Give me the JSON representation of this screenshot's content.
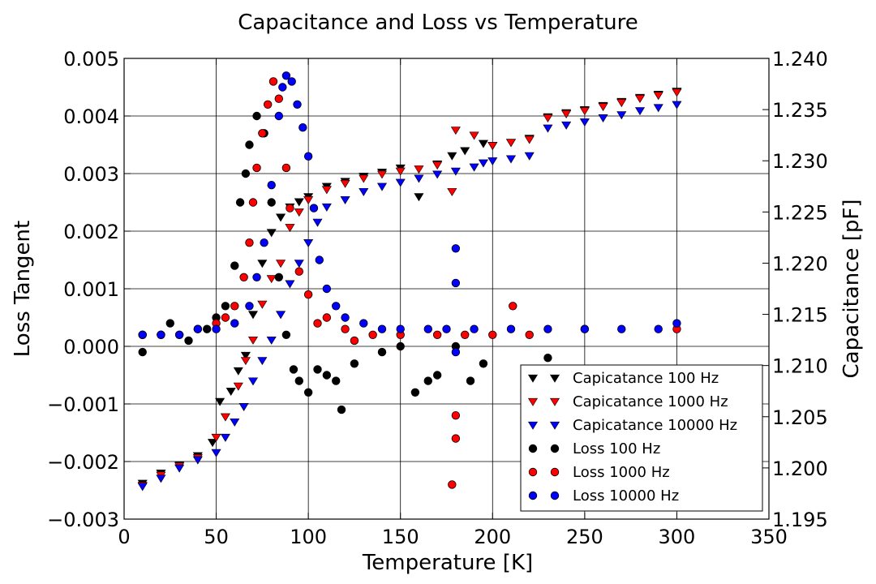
{
  "chart_data": {
    "type": "scatter",
    "title": "Capacitance and Loss vs Temperature",
    "xlabel": "Temperature [K]",
    "ylabel_left": "Loss Tangent",
    "ylabel_right": "Capacitance [pF]",
    "xlim": [
      0,
      350
    ],
    "ylim_left": [
      -0.003,
      0.005
    ],
    "ylim_right": [
      1.195,
      1.24
    ],
    "x_ticks": [
      "0",
      "50",
      "100",
      "150",
      "200",
      "250",
      "300",
      "350"
    ],
    "y_left_ticks": [
      "0.005",
      "0.004",
      "0.003",
      "0.002",
      "0.001",
      "0.000",
      "−0.001",
      "−0.002",
      "−0.003"
    ],
    "y_right_ticks": [
      "1.240",
      "1.235",
      "1.230",
      "1.225",
      "1.220",
      "1.215",
      "1.210",
      "1.205",
      "1.200",
      "1.195"
    ],
    "grid": true,
    "legend_position": "bottom-right",
    "series": [
      {
        "name": "Capicatance 100 Hz",
        "axis": "right",
        "marker": "triangle-down",
        "color": "#000000",
        "points": [
          [
            10,
            1.1985
          ],
          [
            20,
            1.1995
          ],
          [
            30,
            1.2003
          ],
          [
            40,
            1.2012
          ],
          [
            48,
            1.2025
          ],
          [
            52,
            1.2065
          ],
          [
            58,
            1.2075
          ],
          [
            62,
            1.2095
          ],
          [
            66,
            1.211
          ],
          [
            70,
            1.215
          ],
          [
            75,
            1.22
          ],
          [
            80,
            1.223
          ],
          [
            85,
            1.2245
          ],
          [
            90,
            1.2255
          ],
          [
            95,
            1.226
          ],
          [
            100,
            1.2265
          ],
          [
            110,
            1.2275
          ],
          [
            120,
            1.228
          ],
          [
            130,
            1.2285
          ],
          [
            140,
            1.2289
          ],
          [
            150,
            1.2293
          ],
          [
            160,
            1.2265
          ],
          [
            170,
            1.2297
          ],
          [
            178,
            1.2305
          ],
          [
            185,
            1.231
          ],
          [
            195,
            1.2317
          ],
          [
            200,
            1.2315
          ],
          [
            210,
            1.2318
          ],
          [
            220,
            1.2322
          ],
          [
            230,
            1.2343
          ],
          [
            240,
            1.2347
          ],
          [
            250,
            1.235
          ],
          [
            260,
            1.2354
          ],
          [
            270,
            1.2358
          ],
          [
            280,
            1.2362
          ],
          [
            290,
            1.2365
          ],
          [
            300,
            1.2368
          ]
        ]
      },
      {
        "name": "Capicatance 1000 Hz",
        "axis": "right",
        "marker": "triangle-down",
        "color": "#ff0000",
        "points": [
          [
            10,
            1.1983
          ],
          [
            20,
            1.1993
          ],
          [
            30,
            1.2002
          ],
          [
            40,
            1.201
          ],
          [
            50,
            1.203
          ],
          [
            55,
            1.205
          ],
          [
            62,
            1.208
          ],
          [
            66,
            1.2105
          ],
          [
            70,
            1.2125
          ],
          [
            75,
            1.216
          ],
          [
            80,
            1.2185
          ],
          [
            85,
            1.22
          ],
          [
            90,
            1.2235
          ],
          [
            95,
            1.225
          ],
          [
            100,
            1.2262
          ],
          [
            110,
            1.2272
          ],
          [
            120,
            1.2278
          ],
          [
            130,
            1.2283
          ],
          [
            140,
            1.2287
          ],
          [
            150,
            1.229
          ],
          [
            160,
            1.2292
          ],
          [
            170,
            1.2296
          ],
          [
            178,
            1.227
          ],
          [
            180,
            1.233
          ],
          [
            190,
            1.2325
          ],
          [
            200,
            1.2315
          ],
          [
            210,
            1.2318
          ],
          [
            220,
            1.2321
          ],
          [
            230,
            1.2342
          ],
          [
            240,
            1.2346
          ],
          [
            250,
            1.2349
          ],
          [
            260,
            1.2353
          ],
          [
            270,
            1.2357
          ],
          [
            280,
            1.2361
          ],
          [
            290,
            1.2364
          ],
          [
            300,
            1.2367
          ]
        ]
      },
      {
        "name": "Capicatance 10000 Hz",
        "axis": "right",
        "marker": "triangle-down",
        "color": "#0000ff",
        "points": [
          [
            10,
            1.1982
          ],
          [
            20,
            1.199
          ],
          [
            30,
            1.2
          ],
          [
            40,
            1.2008
          ],
          [
            50,
            1.2015
          ],
          [
            55,
            1.203
          ],
          [
            60,
            1.2045
          ],
          [
            65,
            1.206
          ],
          [
            70,
            1.2085
          ],
          [
            75,
            1.2105
          ],
          [
            80,
            1.2125
          ],
          [
            85,
            1.215
          ],
          [
            90,
            1.218
          ],
          [
            95,
            1.22
          ],
          [
            100,
            1.222
          ],
          [
            105,
            1.224
          ],
          [
            110,
            1.2255
          ],
          [
            120,
            1.2262
          ],
          [
            130,
            1.227
          ],
          [
            140,
            1.2275
          ],
          [
            150,
            1.2279
          ],
          [
            160,
            1.2283
          ],
          [
            170,
            1.2287
          ],
          [
            180,
            1.229
          ],
          [
            190,
            1.2294
          ],
          [
            195,
            1.2298
          ],
          [
            200,
            1.23
          ],
          [
            210,
            1.2302
          ],
          [
            220,
            1.2305
          ],
          [
            230,
            1.2332
          ],
          [
            240,
            1.2335
          ],
          [
            250,
            1.2338
          ],
          [
            260,
            1.2342
          ],
          [
            270,
            1.2345
          ],
          [
            280,
            1.2349
          ],
          [
            290,
            1.2352
          ],
          [
            300,
            1.2355
          ]
        ]
      },
      {
        "name": "Loss 100 Hz",
        "axis": "left",
        "marker": "circle",
        "color": "#000000",
        "points": [
          [
            10,
            0.0002
          ],
          [
            10,
            -0.0001
          ],
          [
            20,
            0.0002
          ],
          [
            25,
            0.0004
          ],
          [
            35,
            0.0001
          ],
          [
            45,
            0.0003
          ],
          [
            50,
            0.0005
          ],
          [
            55,
            0.0007
          ],
          [
            60,
            0.0014
          ],
          [
            63,
            0.0025
          ],
          [
            66,
            0.003
          ],
          [
            68,
            0.0035
          ],
          [
            72,
            0.004
          ],
          [
            76,
            0.0037
          ],
          [
            80,
            0.0025
          ],
          [
            84,
            0.0012
          ],
          [
            88,
            0.0002
          ],
          [
            92,
            -0.0004
          ],
          [
            95,
            -0.0006
          ],
          [
            100,
            -0.0008
          ],
          [
            105,
            -0.0004
          ],
          [
            110,
            -0.0005
          ],
          [
            115,
            -0.0006
          ],
          [
            118,
            -0.0011
          ],
          [
            125,
            -0.0003
          ],
          [
            140,
            -0.0001
          ],
          [
            150,
            0.0
          ],
          [
            158,
            -0.0008
          ],
          [
            165,
            -0.0006
          ],
          [
            170,
            -0.0005
          ],
          [
            180,
            0.0
          ],
          [
            188,
            -0.0006
          ],
          [
            195,
            -0.0003
          ],
          [
            230,
            -0.0002
          ],
          [
            233,
            -0.0004
          ]
        ]
      },
      {
        "name": "Loss 1000 Hz",
        "axis": "left",
        "marker": "circle",
        "color": "#ff0000",
        "points": [
          [
            10,
            0.0002
          ],
          [
            20,
            0.0002
          ],
          [
            30,
            0.0002
          ],
          [
            40,
            0.0003
          ],
          [
            50,
            0.0004
          ],
          [
            55,
            0.0005
          ],
          [
            60,
            0.0007
          ],
          [
            65,
            0.0012
          ],
          [
            68,
            0.0018
          ],
          [
            70,
            0.0025
          ],
          [
            72,
            0.0031
          ],
          [
            75,
            0.0037
          ],
          [
            78,
            0.0042
          ],
          [
            81,
            0.0046
          ],
          [
            84,
            0.0043
          ],
          [
            88,
            0.0031
          ],
          [
            90,
            0.0024
          ],
          [
            95,
            0.0013
          ],
          [
            100,
            0.0009
          ],
          [
            105,
            0.0004
          ],
          [
            110,
            0.0005
          ],
          [
            120,
            0.0003
          ],
          [
            125,
            0.0001
          ],
          [
            135,
            0.0002
          ],
          [
            150,
            0.0002
          ],
          [
            170,
            0.0002
          ],
          [
            178,
            -0.0024
          ],
          [
            180,
            -0.0016
          ],
          [
            180,
            -0.0012
          ],
          [
            185,
            0.0002
          ],
          [
            200,
            0.0002
          ],
          [
            211,
            0.0007
          ],
          [
            220,
            0.0002
          ],
          [
            250,
            0.0003
          ],
          [
            300,
            0.0003
          ]
        ]
      },
      {
        "name": "Loss 10000 Hz",
        "axis": "left",
        "marker": "circle",
        "color": "#0000ff",
        "points": [
          [
            10,
            0.0002
          ],
          [
            20,
            0.0002
          ],
          [
            30,
            0.0002
          ],
          [
            40,
            0.0003
          ],
          [
            50,
            0.0003
          ],
          [
            60,
            0.0004
          ],
          [
            68,
            0.0007
          ],
          [
            72,
            0.0012
          ],
          [
            76,
            0.0018
          ],
          [
            80,
            0.0028
          ],
          [
            84,
            0.004
          ],
          [
            86,
            0.0045
          ],
          [
            88,
            0.0047
          ],
          [
            91,
            0.0046
          ],
          [
            94,
            0.0042
          ],
          [
            97,
            0.0038
          ],
          [
            100,
            0.0033
          ],
          [
            103,
            0.0024
          ],
          [
            106,
            0.0015
          ],
          [
            110,
            0.001
          ],
          [
            115,
            0.0007
          ],
          [
            120,
            0.0005
          ],
          [
            130,
            0.0004
          ],
          [
            140,
            0.0003
          ],
          [
            150,
            0.0003
          ],
          [
            165,
            0.0003
          ],
          [
            175,
            0.0003
          ],
          [
            180,
            0.0017
          ],
          [
            180,
            0.0011
          ],
          [
            180,
            -0.0001
          ],
          [
            190,
            0.0003
          ],
          [
            210,
            0.0003
          ],
          [
            230,
            0.0003
          ],
          [
            250,
            0.0003
          ],
          [
            270,
            0.0003
          ],
          [
            290,
            0.0003
          ],
          [
            300,
            0.0004
          ]
        ]
      }
    ]
  }
}
